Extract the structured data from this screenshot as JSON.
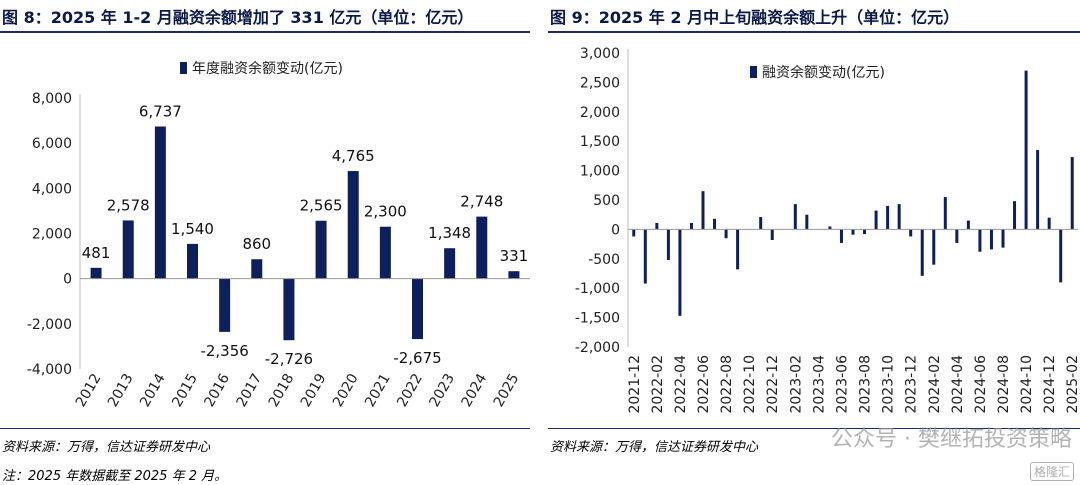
{
  "left": {
    "title": "图 8：2025 年 1-2 月融资余额增加了 331 亿元（单位：亿元）",
    "source": "资料来源：万得，信达证券研发中心",
    "note": "注：2025 年数据截至 2025 年 2 月。"
  },
  "right": {
    "title": "图 9：2025 年 2 月中上旬融资余额上升（单位：亿元）",
    "source": "资料来源：万得，信达证券研发中心",
    "watermark": "公众号 · 樊继拓投资策略",
    "badge": "格隆汇"
  },
  "chart_data": [
    {
      "type": "bar",
      "legend": "年度融资余额变动(亿元)",
      "legend_position": "top",
      "categories": [
        "2012",
        "2013",
        "2014",
        "2015",
        "2016",
        "2017",
        "2018",
        "2019",
        "2020",
        "2021",
        "2022",
        "2023",
        "2024",
        "2025"
      ],
      "values": [
        481,
        2578,
        6737,
        1540,
        -2356,
        860,
        -2726,
        2565,
        4765,
        2300,
        -2675,
        1348,
        2748,
        331
      ],
      "data_labels": [
        "481",
        "2,578",
        "6,737",
        "1,540",
        "-2,356",
        "860",
        "-2,726",
        "2,565",
        "4,765",
        "2,300",
        "-2,675",
        "1,348",
        "2,748",
        "331"
      ],
      "ylim": [
        -4000,
        8000
      ],
      "yticks": [
        -4000,
        -2000,
        0,
        2000,
        4000,
        6000,
        8000
      ],
      "ytick_labels": [
        "-4,000",
        "-2,000",
        "0",
        "2,000",
        "4,000",
        "6,000",
        "8,000"
      ],
      "grid": false,
      "color": "#0d1f5c"
    },
    {
      "type": "bar",
      "legend": "融资余额变动(亿元)",
      "legend_position": "top",
      "x": [
        "2021-12",
        "2022-01",
        "2022-02",
        "2022-03",
        "2022-04",
        "2022-05",
        "2022-06",
        "2022-07",
        "2022-08",
        "2022-09",
        "2022-10",
        "2022-11",
        "2022-12",
        "2023-01",
        "2023-02",
        "2023-03",
        "2023-04",
        "2023-05",
        "2023-06",
        "2023-07",
        "2023-08",
        "2023-09",
        "2023-10",
        "2023-11",
        "2023-12",
        "2024-01",
        "2024-02",
        "2024-03",
        "2024-04",
        "2024-05",
        "2024-06",
        "2024-07",
        "2024-08",
        "2024-09",
        "2024-10",
        "2024-11",
        "2024-12",
        "2025-01",
        "2025-02"
      ],
      "xtick_labels": [
        "2021-12",
        "2022-02",
        "2022-04",
        "2022-06",
        "2022-08",
        "2022-10",
        "2022-12",
        "2023-02",
        "2023-04",
        "2023-06",
        "2023-08",
        "2023-10",
        "2023-12",
        "2024-02",
        "2024-04",
        "2024-06",
        "2024-08",
        "2024-10",
        "2024-12",
        "2025-02"
      ],
      "values": [
        -120,
        -920,
        110,
        -520,
        -1470,
        110,
        650,
        180,
        -150,
        -680,
        0,
        210,
        -180,
        0,
        430,
        250,
        0,
        50,
        -230,
        -90,
        -80,
        320,
        400,
        430,
        -120,
        -790,
        -600,
        550,
        -230,
        150,
        -380,
        -340,
        -310,
        480,
        2700,
        1350,
        200,
        -900,
        1230
      ],
      "ylim": [
        -2000,
        3000
      ],
      "yticks": [
        -2000,
        -1500,
        -1000,
        -500,
        0,
        500,
        1000,
        1500,
        2000,
        2500,
        3000
      ],
      "ytick_labels": [
        "-2,000",
        "-1,500",
        "-1,000",
        "-500",
        "0",
        "500",
        "1,000",
        "1,500",
        "2,000",
        "2,500",
        "3,000"
      ],
      "grid": false,
      "color": "#0d1f5c"
    }
  ]
}
